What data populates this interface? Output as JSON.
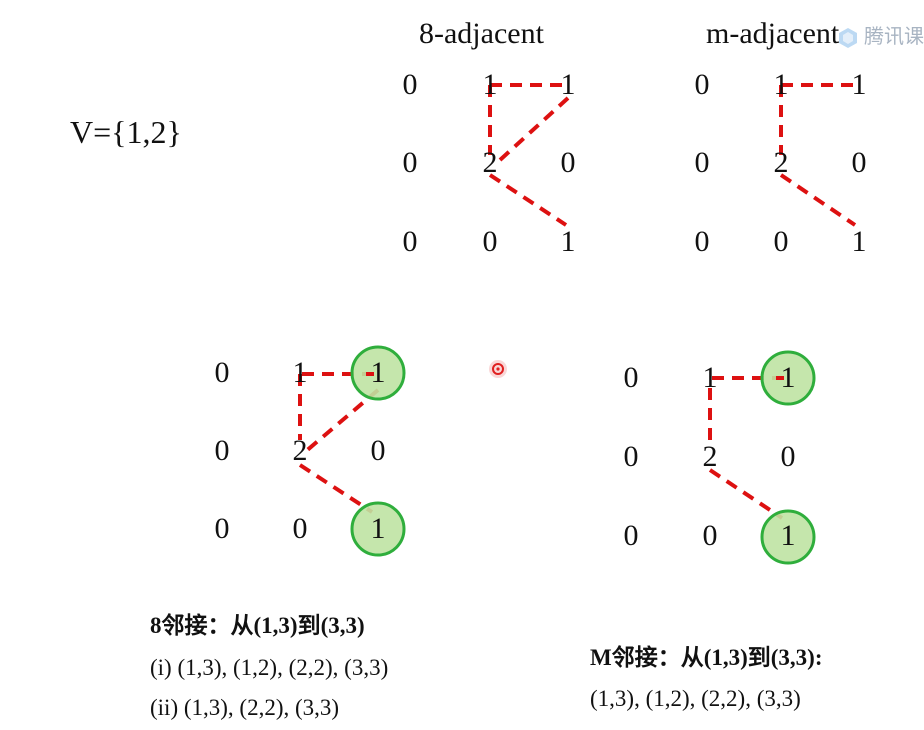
{
  "headings": {
    "eight_adjacent": "8-adjacent",
    "m_adjacent": "m-adjacent"
  },
  "set_label": "V={1,2}",
  "grid_top_left": [
    [
      "0",
      "1",
      "1"
    ],
    [
      "0",
      "2",
      "0"
    ],
    [
      "0",
      "0",
      "1"
    ]
  ],
  "grid_top_right": [
    [
      "0",
      "1",
      "1"
    ],
    [
      "0",
      "2",
      "0"
    ],
    [
      "0",
      "0",
      "1"
    ]
  ],
  "grid_bottom_left": [
    [
      "0",
      "1",
      "1"
    ],
    [
      "0",
      "2",
      "0"
    ],
    [
      "0",
      "0",
      "1"
    ]
  ],
  "grid_bottom_right": [
    [
      "0",
      "1",
      "1"
    ],
    [
      "0",
      "2",
      "0"
    ],
    [
      "0",
      "0",
      "1"
    ]
  ],
  "captions": {
    "left_title": "8邻接：从(1,3)到(3,3)",
    "left_path_i": "(i)  (1,3), (1,2), (2,2), (3,3)",
    "left_path_ii": "(ii) (1,3), (2,2), (3,3)",
    "right_title": "M邻接：从(1,3)到(3,3):",
    "right_path": "(1,3), (1,2), (2,2), (3,3)"
  },
  "watermark": "腾讯课",
  "colors": {
    "path": "#dd1111",
    "highlight_fill": "#bfe3a3",
    "highlight_stroke": "#2fae3c",
    "pointer": "#e02020",
    "text": "#111111"
  },
  "icons": [
    "pointer-dot-icon",
    "watermark-logo-icon"
  ]
}
